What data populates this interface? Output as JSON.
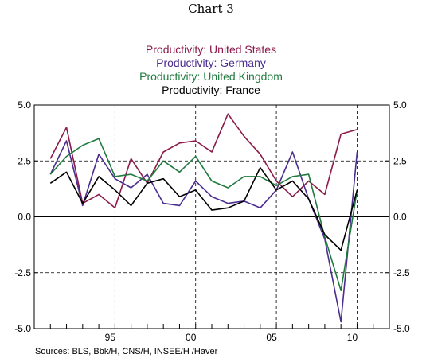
{
  "heading": "Chart 3",
  "source_note": "Sources:  BLS, Bbk/H, CNS/H, INSEE/H /Haver",
  "chart_data": {
    "type": "line",
    "x": [
      1991,
      1992,
      1993,
      1994,
      1995,
      1996,
      1997,
      1998,
      1999,
      2000,
      2001,
      2002,
      2003,
      2004,
      2005,
      2006,
      2007,
      2008,
      2009,
      2010
    ],
    "series": [
      {
        "name": "Productivity:  United States",
        "color": "#8b1a4a",
        "values": [
          2.6,
          4.0,
          0.6,
          1.0,
          0.4,
          2.6,
          1.5,
          2.9,
          3.3,
          3.4,
          2.9,
          4.6,
          3.6,
          2.8,
          1.6,
          0.9,
          1.6,
          1.0,
          3.7,
          3.9
        ]
      },
      {
        "name": "Productivity:  Germany",
        "color": "#4b2d8f",
        "values": [
          1.9,
          3.4,
          0.5,
          2.8,
          1.7,
          1.3,
          1.9,
          0.6,
          0.5,
          1.6,
          0.9,
          0.6,
          0.7,
          0.4,
          1.2,
          2.9,
          0.8,
          -1.0,
          -4.7,
          2.9
        ]
      },
      {
        "name": "Productivity:  United Kingdom",
        "color": "#1f7a3d",
        "values": [
          1.9,
          2.7,
          3.2,
          3.5,
          1.8,
          1.9,
          1.6,
          2.5,
          2.0,
          2.7,
          1.6,
          1.3,
          1.8,
          1.8,
          1.4,
          1.8,
          1.9,
          -0.9,
          -3.3,
          1.2
        ]
      },
      {
        "name": "Productivity: France",
        "color": "#000000",
        "values": [
          1.5,
          2.0,
          0.6,
          1.8,
          1.2,
          0.5,
          1.5,
          1.7,
          0.9,
          1.2,
          0.3,
          0.4,
          0.7,
          2.2,
          1.2,
          1.6,
          0.8,
          -0.8,
          -1.5,
          1.2
        ]
      }
    ],
    "ylim": [
      -5.0,
      5.0
    ],
    "yticks": [
      -5.0,
      -2.5,
      0.0,
      2.5,
      5.0
    ],
    "ytick_labels": [
      "-5.0",
      "-2.5",
      "0.0",
      "2.5",
      "5.0"
    ],
    "xlim": [
      1990,
      2012
    ],
    "xtick_labels": [
      {
        "year": 1995,
        "label": "95"
      },
      {
        "year": 2000,
        "label": "00"
      },
      {
        "year": 2005,
        "label": "05"
      },
      {
        "year": 2010,
        "label": "10"
      }
    ],
    "minor_x_ticks": [
      1990,
      1991,
      1992,
      1993,
      1994,
      1995,
      1996,
      1997,
      1998,
      1999,
      2000,
      2001,
      2002,
      2003,
      2004,
      2005,
      2006,
      2007,
      2008,
      2009,
      2010,
      2011,
      2012
    ],
    "grid": "dashed vertical at labelled years, dashed horizontal at ±2.5, solid zero line",
    "y_axis_both_sides": true
  }
}
